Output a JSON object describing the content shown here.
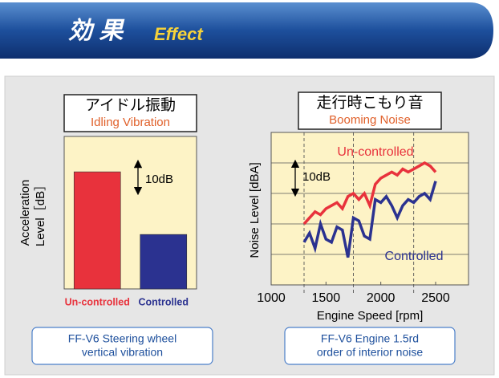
{
  "header": {
    "title_jp": "効 果",
    "title_en": "Effect"
  },
  "chart_data": [
    {
      "type": "bar",
      "title": "アイドル振動",
      "subtitle": "Idling Vibration",
      "ylabel": [
        "Acceleration",
        "Level［dB］"
      ],
      "categories": [
        "Un-controlled",
        "Controlled"
      ],
      "values": [
        43,
        20
      ],
      "colors": [
        "#e8323c",
        "#2b3290"
      ],
      "ylim": [
        0,
        56
      ],
      "annotation": {
        "text": "10dB",
        "value": 10
      },
      "caption": [
        "FF-V6 Steering wheel",
        "vertical vibration"
      ]
    },
    {
      "type": "line",
      "title": "走行時こもり音",
      "subtitle": "Booming Noise",
      "ylabel": "Noise Level [dBA]",
      "xlabel": "Engine Speed [rpm]",
      "x": [
        1300,
        1350,
        1400,
        1450,
        1500,
        1550,
        1600,
        1650,
        1700,
        1750,
        1800,
        1850,
        1900,
        1950,
        2000,
        2050,
        2100,
        2150,
        2200,
        2250,
        2300,
        2350,
        2400,
        2450,
        2500
      ],
      "series": [
        {
          "name": "Un-controlled",
          "color": "#e8323c",
          "values": [
            20,
            22,
            24,
            23,
            25,
            26,
            27,
            25,
            29,
            30,
            28,
            30,
            26,
            33,
            35,
            36,
            37,
            36,
            38,
            37,
            38,
            39,
            40,
            39,
            37
          ]
        },
        {
          "name": "Controlled",
          "color": "#2b3290",
          "values": [
            14,
            17,
            12,
            20,
            15,
            14,
            19,
            18,
            9,
            22,
            21,
            16,
            15,
            28,
            27,
            29,
            26,
            22,
            26,
            28,
            27,
            29,
            30,
            28,
            34
          ]
        }
      ],
      "xlim": [
        1000,
        2800
      ],
      "xticks": [
        1000,
        1500,
        2000,
        2500
      ],
      "ylim": [
        0,
        50
      ],
      "hgrid": [
        10,
        20,
        30,
        40
      ],
      "vlines": [
        1300,
        1750,
        2300
      ],
      "annotation": {
        "text": "10dB",
        "value": 10
      },
      "caption": [
        "FF-V6 Engine 1.5rd",
        "order of interior noise"
      ]
    }
  ]
}
